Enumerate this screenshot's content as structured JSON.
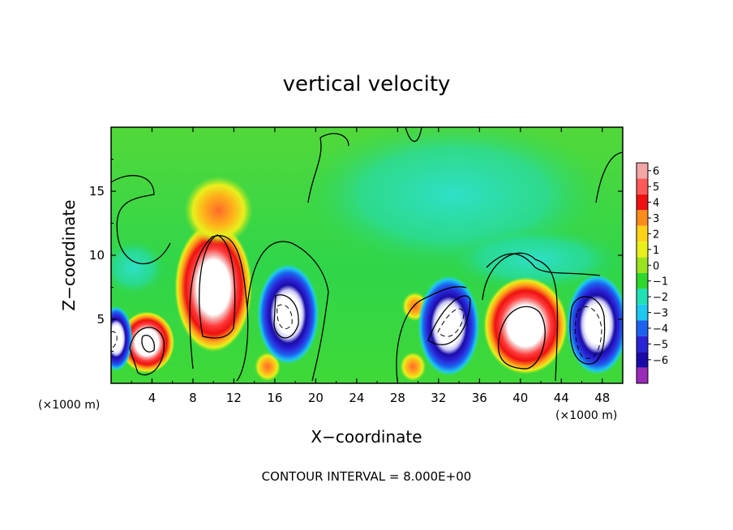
{
  "chart_data": {
    "type": "heatmap",
    "title": "vertical velocity",
    "xlabel": "X−coordinate",
    "ylabel": "Z−coordinate",
    "x_unit_left": "(×1000 m)",
    "x_unit_right": "(×1000 m)",
    "footer": "CONTOUR INTERVAL = 8.000E+00",
    "xlim": [
      0,
      50
    ],
    "ylim": [
      0,
      20
    ],
    "x_ticks": [
      4,
      8,
      12,
      16,
      20,
      24,
      28,
      32,
      36,
      40,
      44,
      48
    ],
    "y_ticks": [
      5,
      10,
      15
    ],
    "colorbar": {
      "ticks": [
        "6",
        "5",
        "4",
        "3",
        "2",
        "1",
        "0",
        "−1",
        "−2",
        "−3",
        "−4",
        "−5",
        "−6"
      ],
      "colors": [
        "#f4a6a6",
        "#ff5a5a",
        "#ee1111",
        "#ff8c1a",
        "#ffd21a",
        "#e8f01c",
        "#9be21f",
        "#2ed62e",
        "#20e0b4",
        "#1ec8f0",
        "#1c62ee",
        "#2a24d6",
        "#1a0ba8",
        "#9a2ab8"
      ]
    },
    "features": [
      {
        "kind": "updraft",
        "x": 10,
        "z": 7.5,
        "peak": 6
      },
      {
        "kind": "updraft",
        "x": 3.5,
        "z": 3.2,
        "peak": 6
      },
      {
        "kind": "updraft",
        "x": 40.5,
        "z": 4.5,
        "peak": 6
      },
      {
        "kind": "updraft",
        "x": 29.7,
        "z": 6,
        "peak": 3
      },
      {
        "kind": "updraft",
        "x": 15.3,
        "z": 1.3,
        "peak": 3
      },
      {
        "kind": "updraft",
        "x": 29.5,
        "z": 1.3,
        "peak": 3
      },
      {
        "kind": "downdraft",
        "x": 17.3,
        "z": 5.4,
        "peak": -6
      },
      {
        "kind": "downdraft",
        "x": 33,
        "z": 4.5,
        "peak": -6
      },
      {
        "kind": "downdraft",
        "x": 47.5,
        "z": 4.6,
        "peak": -6
      },
      {
        "kind": "downdraft",
        "x": 0.5,
        "z": 3.5,
        "peak": -5
      }
    ]
  }
}
